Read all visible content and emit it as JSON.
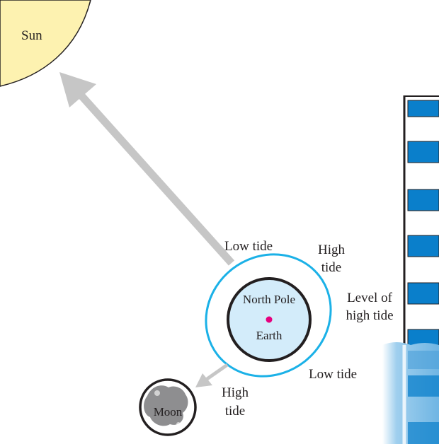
{
  "sun": {
    "label": "Sun",
    "fill": "#fdf2b0",
    "stroke": "#231f20"
  },
  "earth": {
    "top_label": "North Pole",
    "bottom_label": "Earth",
    "fill": "#d3ecfa",
    "pole_color": "#e6007e"
  },
  "tide_bulge": {
    "stroke": "#1bb1e7"
  },
  "moon": {
    "label": "Moon",
    "fill": "#8e8e90"
  },
  "arrows": {
    "color": "#c6c6c6"
  },
  "tides": {
    "low_top": "Low tide",
    "high_right_line1": "High",
    "high_right_line2": "tide",
    "low_right": "Low tide",
    "high_bottom_line1": "High",
    "high_bottom_line2": "tide"
  },
  "building": {
    "level_line1": "Level of",
    "level_line2": "high tide",
    "window_color": "#0a7fcb",
    "water_color": "#b9dcf2"
  }
}
